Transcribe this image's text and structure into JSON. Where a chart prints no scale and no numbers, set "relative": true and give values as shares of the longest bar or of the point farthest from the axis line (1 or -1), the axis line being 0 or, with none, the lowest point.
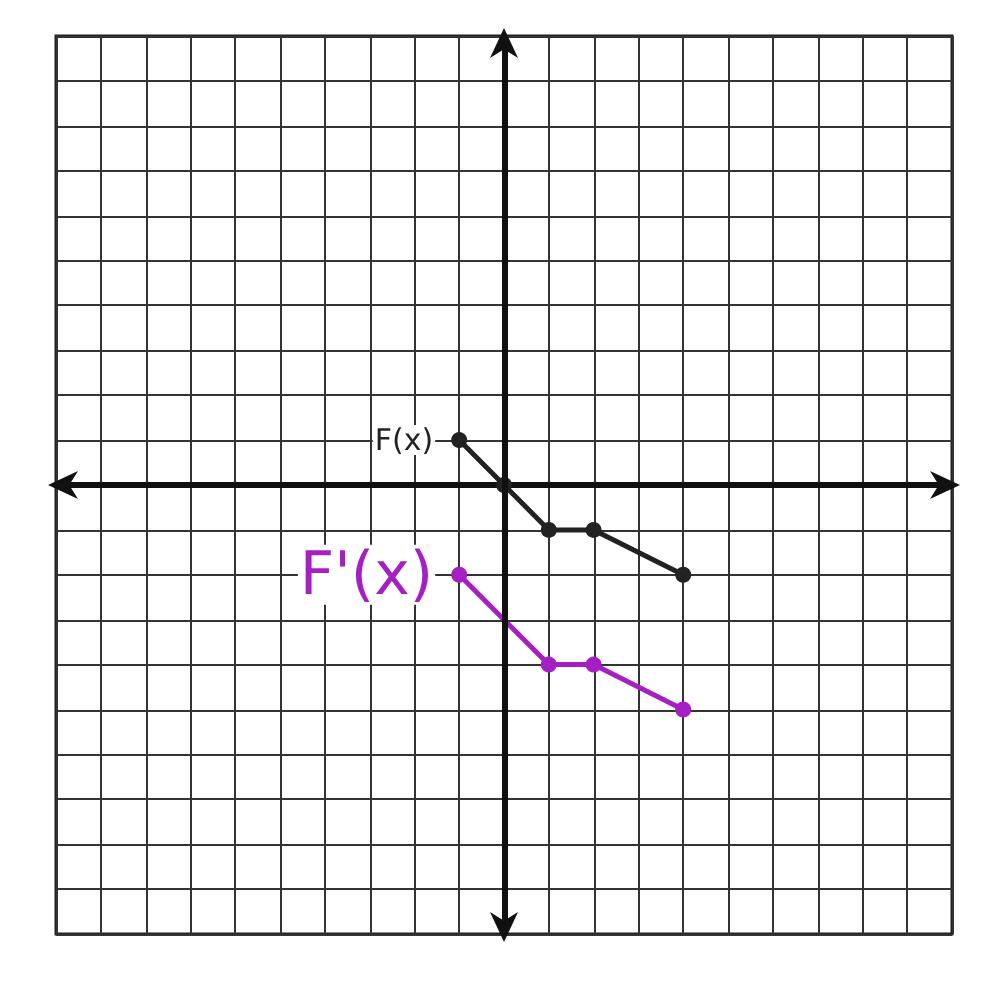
{
  "chart_data": {
    "type": "line",
    "relative": true,
    "grid": true,
    "marker": "circle",
    "categories": [
      null,
      null,
      null,
      null,
      null,
      null,
      null,
      null,
      null,
      null,
      null,
      null,
      null,
      null,
      null,
      null,
      null,
      null,
      null,
      null,
      null
    ],
    "series": [
      {
        "name": "F(x)",
        "color": "#222222",
        "values": [
          null,
          null,
          null,
          null,
          null,
          null,
          null,
          null,
          null,
          0.2,
          0,
          -0.2,
          -0.2,
          null,
          -0.4,
          null,
          null,
          null,
          null,
          null,
          null
        ]
      },
      {
        "name": "F'(x)",
        "color": "#a51fc4",
        "values": [
          null,
          null,
          null,
          null,
          null,
          null,
          null,
          null,
          null,
          -0.4,
          null,
          -0.8,
          -0.8,
          null,
          -1,
          null,
          null,
          null,
          null,
          null,
          null
        ]
      }
    ]
  }
}
